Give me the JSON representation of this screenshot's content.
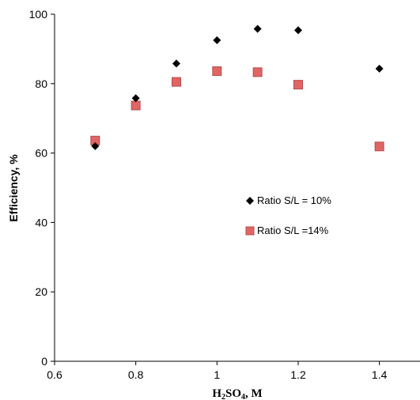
{
  "chart_data": {
    "type": "scatter",
    "title": "",
    "xlabel_main": "H",
    "xlabel_sub1": "2",
    "xlabel_mid": "SO",
    "xlabel_sub2": "4",
    "xlabel_tail": ", M",
    "ylabel": "Efficiency, %",
    "xlim": [
      0.6,
      1.5
    ],
    "ylim": [
      0,
      100
    ],
    "xticks": [
      0.6,
      0.8,
      1.0,
      1.2,
      1.4
    ],
    "xtick_labels": [
      "0.6",
      "0.8",
      "1",
      "1.2",
      "1.4"
    ],
    "yticks": [
      0,
      20,
      40,
      60,
      80,
      100
    ],
    "ytick_labels": [
      "0",
      "20",
      "40",
      "60",
      "80",
      "100"
    ],
    "grid": false,
    "legend_position": "center-right",
    "series": [
      {
        "name": "Ratio S/L = 10%",
        "marker": "diamond",
        "color": "#000000",
        "x": [
          0.7,
          0.8,
          0.9,
          1.0,
          1.1,
          1.2,
          1.4
        ],
        "y": [
          62.0,
          75.8,
          85.8,
          92.5,
          95.8,
          95.4,
          84.3
        ]
      },
      {
        "name": "Ratio S/L =14%",
        "marker": "square",
        "color": "#e06666",
        "x": [
          0.7,
          0.8,
          0.9,
          1.0,
          1.1,
          1.2,
          1.4
        ],
        "y": [
          63.6,
          73.7,
          80.5,
          83.6,
          83.3,
          79.7,
          61.9
        ]
      }
    ]
  }
}
